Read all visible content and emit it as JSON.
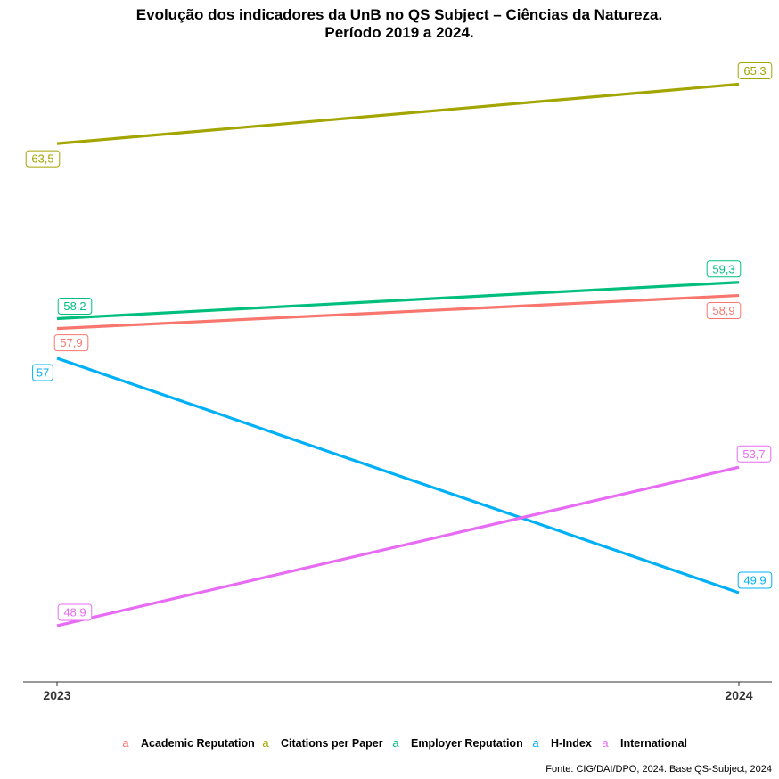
{
  "chart_data": {
    "type": "line",
    "title_lines": [
      "Evolução dos indicadores da UnB no QS Subject – Ciências da Natureza.",
      "Período 2019 a 2024."
    ],
    "x": [
      "2023",
      "2024"
    ],
    "ylim": [
      47.2,
      66.5
    ],
    "grid": false,
    "legend_position": "bottom",
    "series": [
      {
        "name": "Academic Reputation",
        "color": "#F8766D",
        "values": [
          57.9,
          58.9
        ],
        "labels": [
          "57,9",
          "58,9"
        ]
      },
      {
        "name": "Citations per Paper",
        "color": "#A3A500",
        "values": [
          63.5,
          65.3
        ],
        "labels": [
          "63,5",
          "65,3"
        ]
      },
      {
        "name": "Employer Reputation",
        "color": "#00BF7D",
        "values": [
          58.2,
          59.3
        ],
        "labels": [
          "58,2",
          "59,3"
        ]
      },
      {
        "name": "H-Index",
        "color": "#00B0F6",
        "values": [
          57,
          49.9
        ],
        "labels": [
          "57",
          "49,9"
        ]
      },
      {
        "name": "International",
        "color": "#E76BF3",
        "values": [
          48.9,
          53.7
        ],
        "labels": [
          "48,9",
          "53,7"
        ]
      }
    ],
    "legend_key_glyph": "a",
    "caption": "Fonte: CIG/DAI/DPO, 2024. Base QS-Subject, 2024"
  }
}
